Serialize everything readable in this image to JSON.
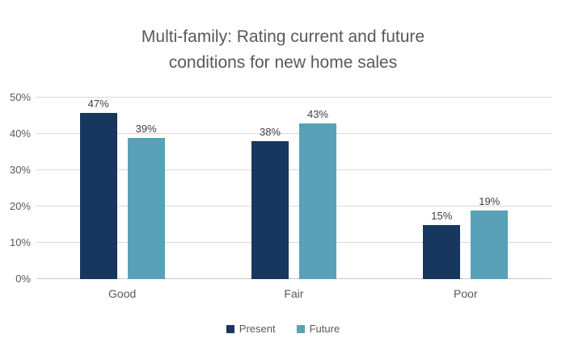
{
  "chart_data": {
    "type": "bar",
    "title": "Multi-family: Rating current and future conditions for new home sales",
    "title_lines": [
      "Multi-family: Rating current and future",
      "conditions for new home sales"
    ],
    "categories": [
      "Good",
      "Fair",
      "Poor"
    ],
    "series": [
      {
        "name": "Present",
        "color": "#17375E",
        "values": [
          47,
          38,
          15
        ]
      },
      {
        "name": "Future",
        "color": "#58A1B7",
        "values": [
          39,
          43,
          19
        ]
      }
    ],
    "data_labels": [
      [
        "47%",
        "38%",
        "15%"
      ],
      [
        "39%",
        "43%",
        "19%"
      ]
    ],
    "xlabel": "",
    "ylabel": "",
    "y_axis": {
      "min": 0,
      "max": 50,
      "tick_step": 10,
      "tick_labels": [
        "0%",
        "10%",
        "20%",
        "30%",
        "40%",
        "50%"
      ]
    },
    "ylim": [
      0,
      50
    ],
    "grid": true,
    "legend_position": "bottom"
  },
  "colors": {
    "background": "#FFFFFF",
    "title_text": "#595959",
    "axis_text": "#595959",
    "data_label_text": "#404040",
    "gridline": "#D9D9D9",
    "series_present": "#17375E",
    "series_future": "#58A1B7"
  }
}
